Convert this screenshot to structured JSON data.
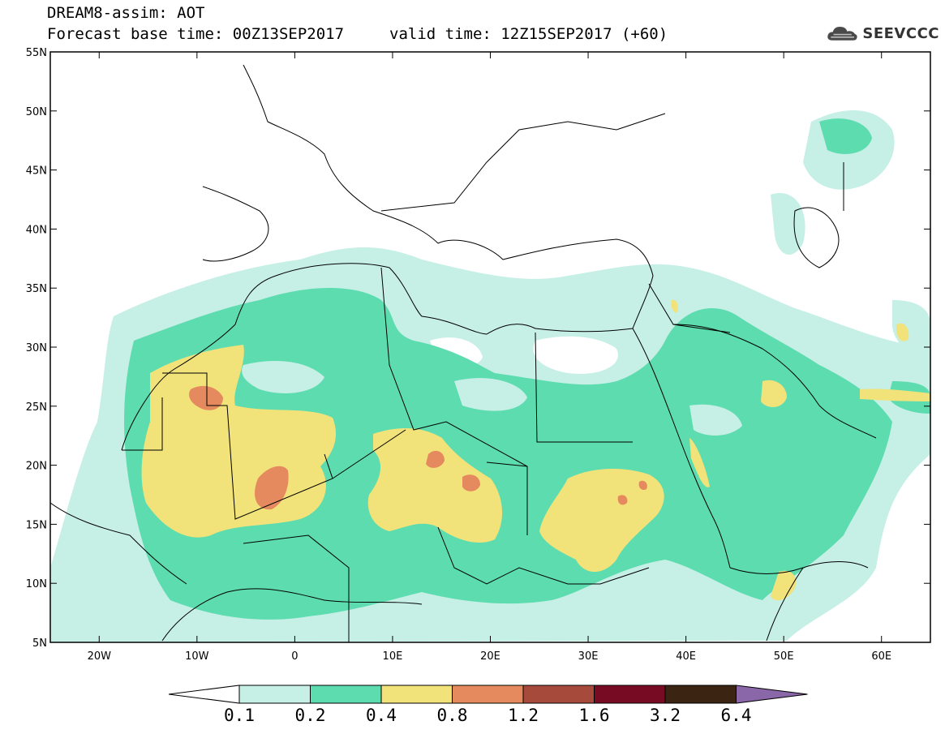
{
  "header": {
    "line1": "DREAM8-assim: AOT",
    "line2": "Forecast base time: 00Z13SEP2017",
    "line3": "valid time: 12Z15SEP2017 (+60)"
  },
  "logo": {
    "text": "SEEVCCC",
    "icon": "cloud-icon"
  },
  "map": {
    "lon_range": [
      -25,
      65
    ],
    "lat_range": [
      5,
      55
    ],
    "lat_ticks": [
      "5N",
      "10N",
      "15N",
      "20N",
      "25N",
      "30N",
      "35N",
      "40N",
      "45N",
      "50N",
      "55N"
    ],
    "lon_ticks": [
      "20W",
      "10W",
      "0",
      "10E",
      "20E",
      "30E",
      "40E",
      "50E",
      "60E"
    ]
  },
  "colorbar": {
    "levels": [
      "0.1",
      "0.2",
      "0.4",
      "0.8",
      "1.2",
      "1.6",
      "3.2",
      "6.4"
    ],
    "colors": [
      "#ffffff",
      "#c6efe6",
      "#5ddcb0",
      "#f2e27a",
      "#e48a5e",
      "#a64b3c",
      "#770b24",
      "#3b2411",
      "#8a67a8"
    ]
  }
}
